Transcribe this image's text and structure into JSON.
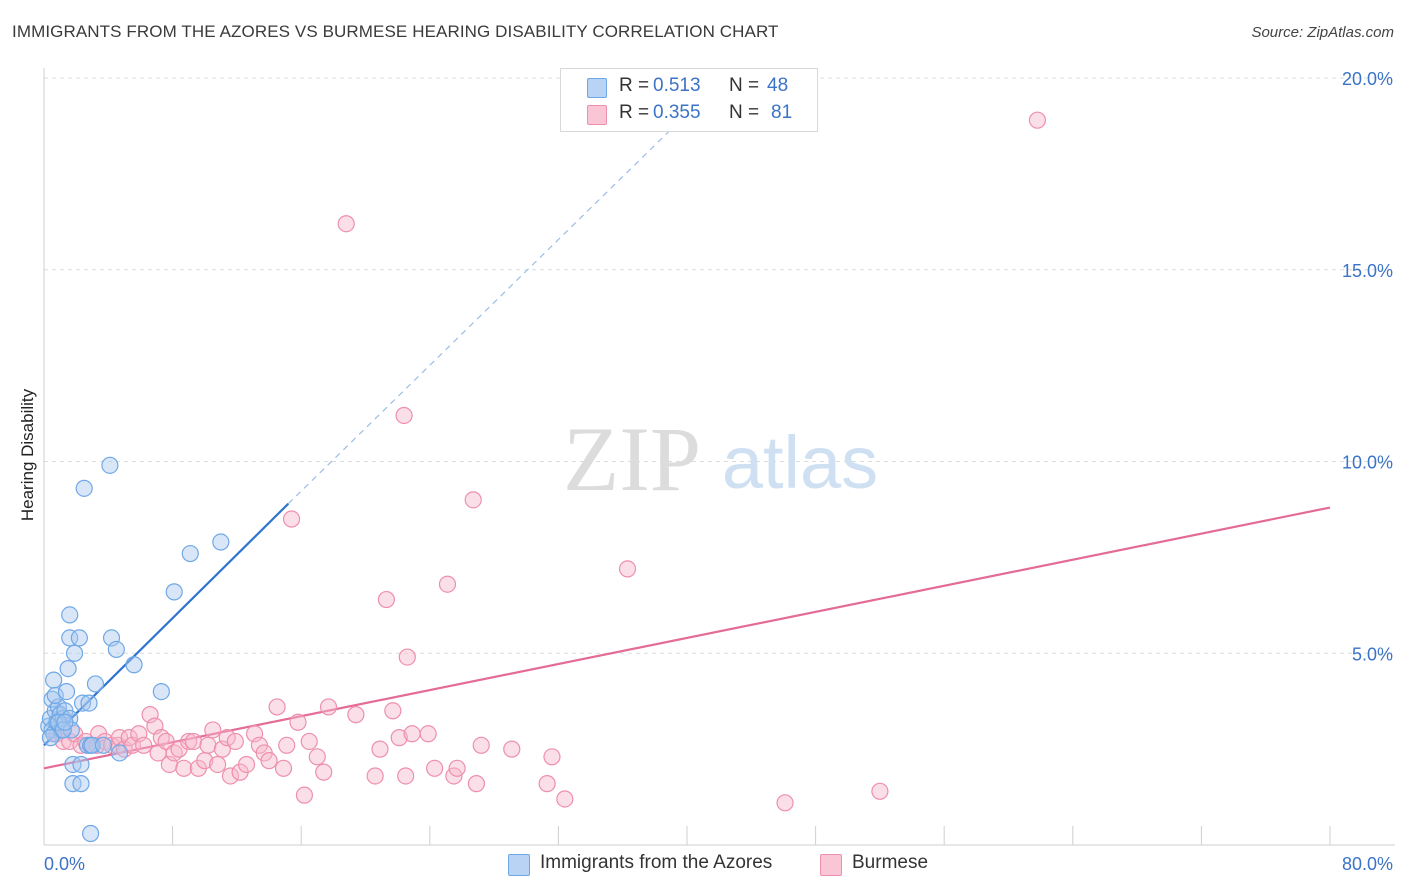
{
  "header": {
    "title": "IMMIGRANTS FROM THE AZORES VS BURMESE HEARING DISABILITY CORRELATION CHART",
    "source": "Source: ZipAtlas.com"
  },
  "watermark": {
    "zip": "ZIP",
    "atlas": "atlas"
  },
  "legend_top": {
    "rows": [
      {
        "r_label": "R =",
        "r_value": "0.513",
        "n_label": "N =",
        "n_value": "48",
        "color": "#a8c8f0"
      },
      {
        "r_label": "R =",
        "r_value": "0.355",
        "n_label": "N =",
        "n_value": "81",
        "color": "#f7b8cb"
      }
    ]
  },
  "legend_bottom": {
    "items": [
      {
        "label": "Immigrants from the Azores",
        "color": "#a8c8f0"
      },
      {
        "label": "Burmese",
        "color": "#f7b8cb"
      }
    ]
  },
  "chart_data": {
    "type": "scatter",
    "title": "IMMIGRANTS FROM THE AZORES VS BURMESE HEARING DISABILITY CORRELATION CHART",
    "xlabel": "",
    "ylabel": "Hearing Disability",
    "xlim": [
      0,
      80
    ],
    "ylim": [
      0,
      20
    ],
    "x_tick_labels": [
      "0.0%",
      "80.0%"
    ],
    "y_ticks": [
      5,
      10,
      15,
      20
    ],
    "y_tick_labels": [
      "5.0%",
      "10.0%",
      "15.0%",
      "20.0%"
    ],
    "grid": true,
    "series": [
      {
        "name": "Immigrants from the Azores",
        "color": "#6fa8e6",
        "fill": "#a8c8f0",
        "line_color": "#2f74d0",
        "trend": {
          "x0": 0,
          "y0": 2.6,
          "x1": 15.2,
          "y1": 8.9,
          "dash_to_x": 41.3,
          "dash_to_y": 19.6
        },
        "points": [
          [
            0.3,
            3.1
          ],
          [
            0.4,
            3.3
          ],
          [
            0.5,
            3.0
          ],
          [
            0.6,
            2.9
          ],
          [
            0.7,
            3.5
          ],
          [
            0.8,
            3.2
          ],
          [
            0.5,
            3.8
          ],
          [
            0.6,
            4.3
          ],
          [
            0.9,
            3.6
          ],
          [
            1.0,
            3.4
          ],
          [
            1.1,
            3.0
          ],
          [
            1.2,
            3.3
          ],
          [
            0.7,
            3.9
          ],
          [
            1.3,
            3.5
          ],
          [
            1.4,
            4.0
          ],
          [
            1.5,
            4.6
          ],
          [
            1.6,
            3.3
          ],
          [
            1.7,
            3.0
          ],
          [
            1.6,
            6.0
          ],
          [
            1.6,
            5.4
          ],
          [
            1.9,
            5.0
          ],
          [
            2.2,
            5.4
          ],
          [
            1.8,
            2.1
          ],
          [
            1.8,
            1.6
          ],
          [
            2.3,
            2.1
          ],
          [
            2.3,
            1.6
          ],
          [
            2.4,
            3.7
          ],
          [
            2.5,
            9.3
          ],
          [
            2.7,
            2.6
          ],
          [
            2.8,
            3.7
          ],
          [
            2.9,
            2.6
          ],
          [
            3.0,
            2.6
          ],
          [
            3.2,
            4.2
          ],
          [
            3.7,
            2.6
          ],
          [
            4.1,
            9.9
          ],
          [
            4.2,
            5.4
          ],
          [
            4.5,
            5.1
          ],
          [
            4.7,
            2.4
          ],
          [
            5.6,
            4.7
          ],
          [
            7.3,
            4.0
          ],
          [
            8.1,
            6.6
          ],
          [
            9.1,
            7.6
          ],
          [
            11.0,
            7.9
          ],
          [
            2.9,
            0.3
          ],
          [
            0.4,
            2.8
          ],
          [
            0.9,
            3.2
          ],
          [
            1.2,
            3.0
          ],
          [
            1.3,
            3.2
          ]
        ]
      },
      {
        "name": "Burmese",
        "color": "#ee8fab",
        "fill": "#f7b8cb",
        "line_color": "#e46b97",
        "trend": {
          "x0": 0,
          "y0": 2.0,
          "x1": 80,
          "y1": 8.8
        },
        "points": [
          [
            0.8,
            2.9
          ],
          [
            1.2,
            2.7
          ],
          [
            1.6,
            2.7
          ],
          [
            1.9,
            2.9
          ],
          [
            2.3,
            2.6
          ],
          [
            2.6,
            2.7
          ],
          [
            2.9,
            2.6
          ],
          [
            3.3,
            2.6
          ],
          [
            3.4,
            2.9
          ],
          [
            3.8,
            2.7
          ],
          [
            4.2,
            2.6
          ],
          [
            4.6,
            2.6
          ],
          [
            4.7,
            2.8
          ],
          [
            5.0,
            2.5
          ],
          [
            5.3,
            2.8
          ],
          [
            5.5,
            2.6
          ],
          [
            5.9,
            2.9
          ],
          [
            6.2,
            2.6
          ],
          [
            6.6,
            3.4
          ],
          [
            6.9,
            3.1
          ],
          [
            7.1,
            2.4
          ],
          [
            7.3,
            2.8
          ],
          [
            7.6,
            2.7
          ],
          [
            7.8,
            2.1
          ],
          [
            8.1,
            2.4
          ],
          [
            8.4,
            2.5
          ],
          [
            8.7,
            2.0
          ],
          [
            9.0,
            2.7
          ],
          [
            9.3,
            2.7
          ],
          [
            9.6,
            2.0
          ],
          [
            10.0,
            2.2
          ],
          [
            10.2,
            2.6
          ],
          [
            10.5,
            3.0
          ],
          [
            10.8,
            2.1
          ],
          [
            11.1,
            2.5
          ],
          [
            11.4,
            2.8
          ],
          [
            11.6,
            1.8
          ],
          [
            11.9,
            2.7
          ],
          [
            12.2,
            1.9
          ],
          [
            12.6,
            2.1
          ],
          [
            13.1,
            2.9
          ],
          [
            13.4,
            2.6
          ],
          [
            13.7,
            2.4
          ],
          [
            14.0,
            2.2
          ],
          [
            14.5,
            3.6
          ],
          [
            14.9,
            2.0
          ],
          [
            15.1,
            2.6
          ],
          [
            15.4,
            8.5
          ],
          [
            15.8,
            3.2
          ],
          [
            16.2,
            1.3
          ],
          [
            16.5,
            2.7
          ],
          [
            17.0,
            2.3
          ],
          [
            17.4,
            1.9
          ],
          [
            17.7,
            3.6
          ],
          [
            18.8,
            16.2
          ],
          [
            19.4,
            3.4
          ],
          [
            20.6,
            1.8
          ],
          [
            20.9,
            2.5
          ],
          [
            21.3,
            6.4
          ],
          [
            21.7,
            3.5
          ],
          [
            22.1,
            2.8
          ],
          [
            22.6,
            4.9
          ],
          [
            22.9,
            2.9
          ],
          [
            22.4,
            11.2
          ],
          [
            23.9,
            2.9
          ],
          [
            24.3,
            2.0
          ],
          [
            25.1,
            6.8
          ],
          [
            25.5,
            1.8
          ],
          [
            25.7,
            2.0
          ],
          [
            26.7,
            9.0
          ],
          [
            26.9,
            1.6
          ],
          [
            27.2,
            2.6
          ],
          [
            29.1,
            2.5
          ],
          [
            31.3,
            1.6
          ],
          [
            31.6,
            2.3
          ],
          [
            32.4,
            1.2
          ],
          [
            36.3,
            7.2
          ],
          [
            46.1,
            1.1
          ],
          [
            52.0,
            1.4
          ],
          [
            61.8,
            18.9
          ],
          [
            22.5,
            1.8
          ]
        ]
      }
    ]
  }
}
